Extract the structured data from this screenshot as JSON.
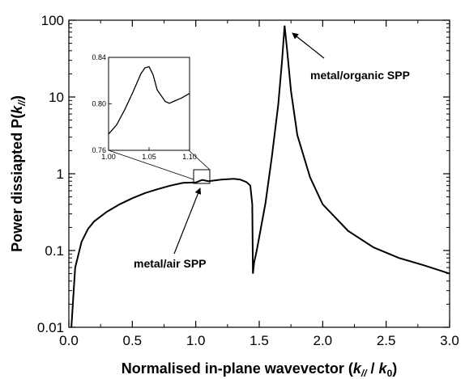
{
  "chart_data": [
    {
      "type": "line",
      "ylabel_prefix": "Power dissiapted P(",
      "ylabel_k": "k",
      "ylabel_sub": "//",
      "ylabel_suffix": ")",
      "xlabel_prefix": "Normalised in-plane wavevector (",
      "xlabel_k1": "k",
      "xlabel_sub1": "//",
      "xlabel_mid": " / ",
      "xlabel_k2": "k",
      "xlabel_sub2": "0",
      "xlabel_suffix": ")",
      "xlim": [
        0,
        3.0
      ],
      "ylim": [
        0.01,
        100
      ],
      "yscale": "log",
      "xticks": [
        "0.0",
        "0.5",
        "1.0",
        "1.5",
        "2.0",
        "2.5",
        "3.0"
      ],
      "yticks": [
        "0.01",
        "0.1",
        "1",
        "10",
        "100"
      ],
      "grid": false,
      "annotations": [
        "metal/organic SPP",
        "metal/air SPP"
      ],
      "series": [
        {
          "x": [
            0.02,
            0.05,
            0.1,
            0.15,
            0.2,
            0.3,
            0.4,
            0.5,
            0.6,
            0.7,
            0.8,
            0.9,
            1.0,
            1.05,
            1.1,
            1.2,
            1.3,
            1.35,
            1.4,
            1.43,
            1.445,
            1.45,
            1.46,
            1.48,
            1.5,
            1.55,
            1.6,
            1.65,
            1.68,
            1.7,
            1.72,
            1.75,
            1.8,
            1.9,
            2.0,
            2.2,
            2.4,
            2.6,
            2.8,
            3.0
          ],
          "y": [
            0.01,
            0.06,
            0.13,
            0.19,
            0.24,
            0.32,
            0.4,
            0.48,
            0.56,
            0.63,
            0.7,
            0.76,
            0.77,
            0.83,
            0.8,
            0.84,
            0.86,
            0.84,
            0.78,
            0.7,
            0.4,
            0.05,
            0.07,
            0.1,
            0.15,
            0.42,
            1.7,
            8,
            30,
            85,
            40,
            12,
            3.2,
            0.9,
            0.4,
            0.18,
            0.11,
            0.08,
            0.064,
            0.05
          ]
        }
      ]
    },
    {
      "type": "line",
      "xlim": [
        1.0,
        1.1
      ],
      "ylim": [
        0.76,
        0.84
      ],
      "xticks": [
        "1.00",
        "1.05",
        "1.10"
      ],
      "yticks": [
        "0.76",
        "0.80",
        "0.84"
      ],
      "series": [
        {
          "x": [
            1.0,
            1.01,
            1.02,
            1.03,
            1.04,
            1.045,
            1.05,
            1.055,
            1.06,
            1.07,
            1.075,
            1.08,
            1.09,
            1.1
          ],
          "y": [
            0.774,
            0.782,
            0.795,
            0.81,
            0.826,
            0.831,
            0.832,
            0.825,
            0.812,
            0.802,
            0.8005,
            0.802,
            0.805,
            0.809
          ]
        }
      ]
    }
  ]
}
